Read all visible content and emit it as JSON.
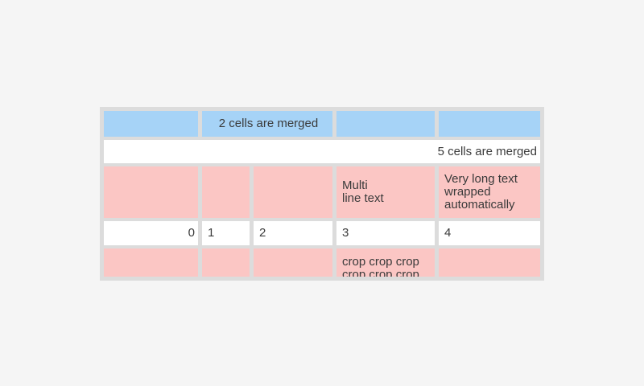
{
  "colors": {
    "page-bg": "#f5f5f5",
    "grid": "#dcdcdc",
    "blue": "#a6d3f7",
    "pink": "#fbc6c4",
    "cell-white": "#ffffff",
    "text": "#3a3a3a"
  },
  "table": {
    "rows": [
      {
        "cells": [
          {
            "text": ""
          },
          {
            "text": "2 cells are merged"
          },
          {
            "text": ""
          },
          {
            "text": ""
          }
        ]
      },
      {
        "cells": [
          {
            "text": "5 cells are merged"
          }
        ]
      },
      {
        "cells": [
          {
            "text": ""
          },
          {
            "text": ""
          },
          {
            "text": ""
          },
          {
            "text": "Multi\nline text"
          },
          {
            "text": "Very long text wrapped automatically"
          }
        ]
      },
      {
        "cells": [
          {
            "text": "0"
          },
          {
            "text": "1"
          },
          {
            "text": "2"
          },
          {
            "text": "3"
          },
          {
            "text": "4"
          }
        ]
      },
      {
        "cells": [
          {
            "text": ""
          },
          {
            "text": ""
          },
          {
            "text": ""
          },
          {
            "text": "crop crop crop crop crop crop"
          },
          {
            "text": ""
          }
        ]
      }
    ]
  }
}
